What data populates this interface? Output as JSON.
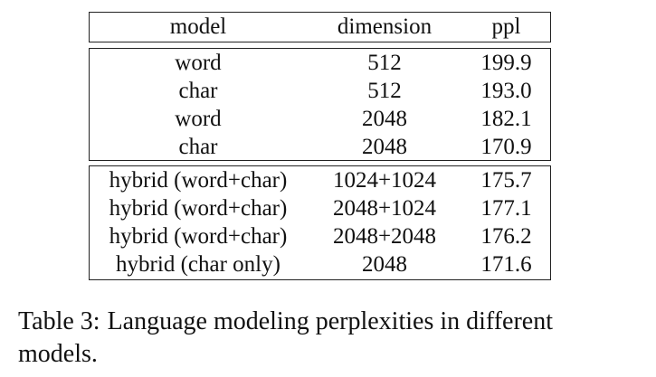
{
  "table": {
    "columns": [
      "model",
      "dimension",
      "ppl"
    ],
    "group1": [
      {
        "model": "word",
        "dimension": "512",
        "ppl": "199.9"
      },
      {
        "model": "char",
        "dimension": "512",
        "ppl": "193.0"
      },
      {
        "model": "word",
        "dimension": "2048",
        "ppl": "182.1"
      },
      {
        "model": "char",
        "dimension": "2048",
        "ppl": "170.9"
      }
    ],
    "group2": [
      {
        "model": "hybrid (word+char)",
        "dimension": "1024+1024",
        "ppl": "175.7"
      },
      {
        "model": "hybrid (word+char)",
        "dimension": "2048+1024",
        "ppl": "177.1"
      },
      {
        "model": "hybrid (word+char)",
        "dimension": "2048+2048",
        "ppl": "176.2"
      },
      {
        "model": "hybrid (char only)",
        "dimension": "2048",
        "ppl": "171.6"
      }
    ]
  },
  "caption": {
    "label": "Table 3:",
    "text": "Language modeling perplexities in different models."
  }
}
